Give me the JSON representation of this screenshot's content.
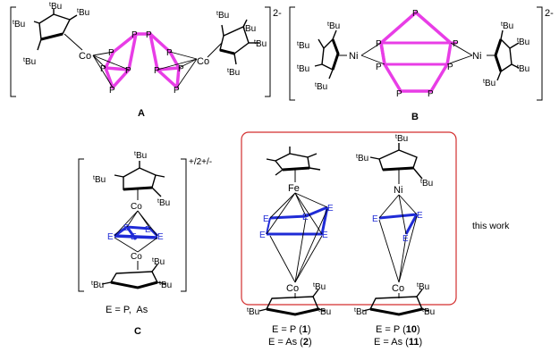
{
  "colors": {
    "phosphorus_cage": "#e83de6",
    "e_ligand": "#1f2bd6",
    "highlight_box": "#d32f2f",
    "bonds": "#000000"
  },
  "substituent": "Bu",
  "substituent_sup": "t",
  "panels": {
    "A": {
      "label": "A",
      "charge": "2-",
      "metal": "Co",
      "cage_atom": "P"
    },
    "B": {
      "label": "B",
      "charge": "2-",
      "metal": "Ni",
      "cage_atom": "P"
    },
    "C": {
      "label": "C",
      "charge": "+/2+/-",
      "metal": "Co",
      "ring_atom": "E",
      "caption": "E = P,  As"
    },
    "this_work": {
      "note": "this work",
      "complex1": {
        "metal_top": "Fe",
        "metal_bottom": "Co",
        "ring_atom": "E",
        "caption": [
          {
            "pre": "E = P (",
            "num": "1",
            "post": ")"
          },
          {
            "pre": "E = As (",
            "num": "2",
            "post": ")"
          }
        ]
      },
      "complex2": {
        "metal_top": "Ni",
        "metal_bottom": "Co",
        "ring_atom": "E",
        "caption": [
          {
            "pre": "E = P (",
            "num": "10",
            "post": ")"
          },
          {
            "pre": "E = As (",
            "num": "11",
            "post": ")"
          }
        ]
      }
    }
  }
}
